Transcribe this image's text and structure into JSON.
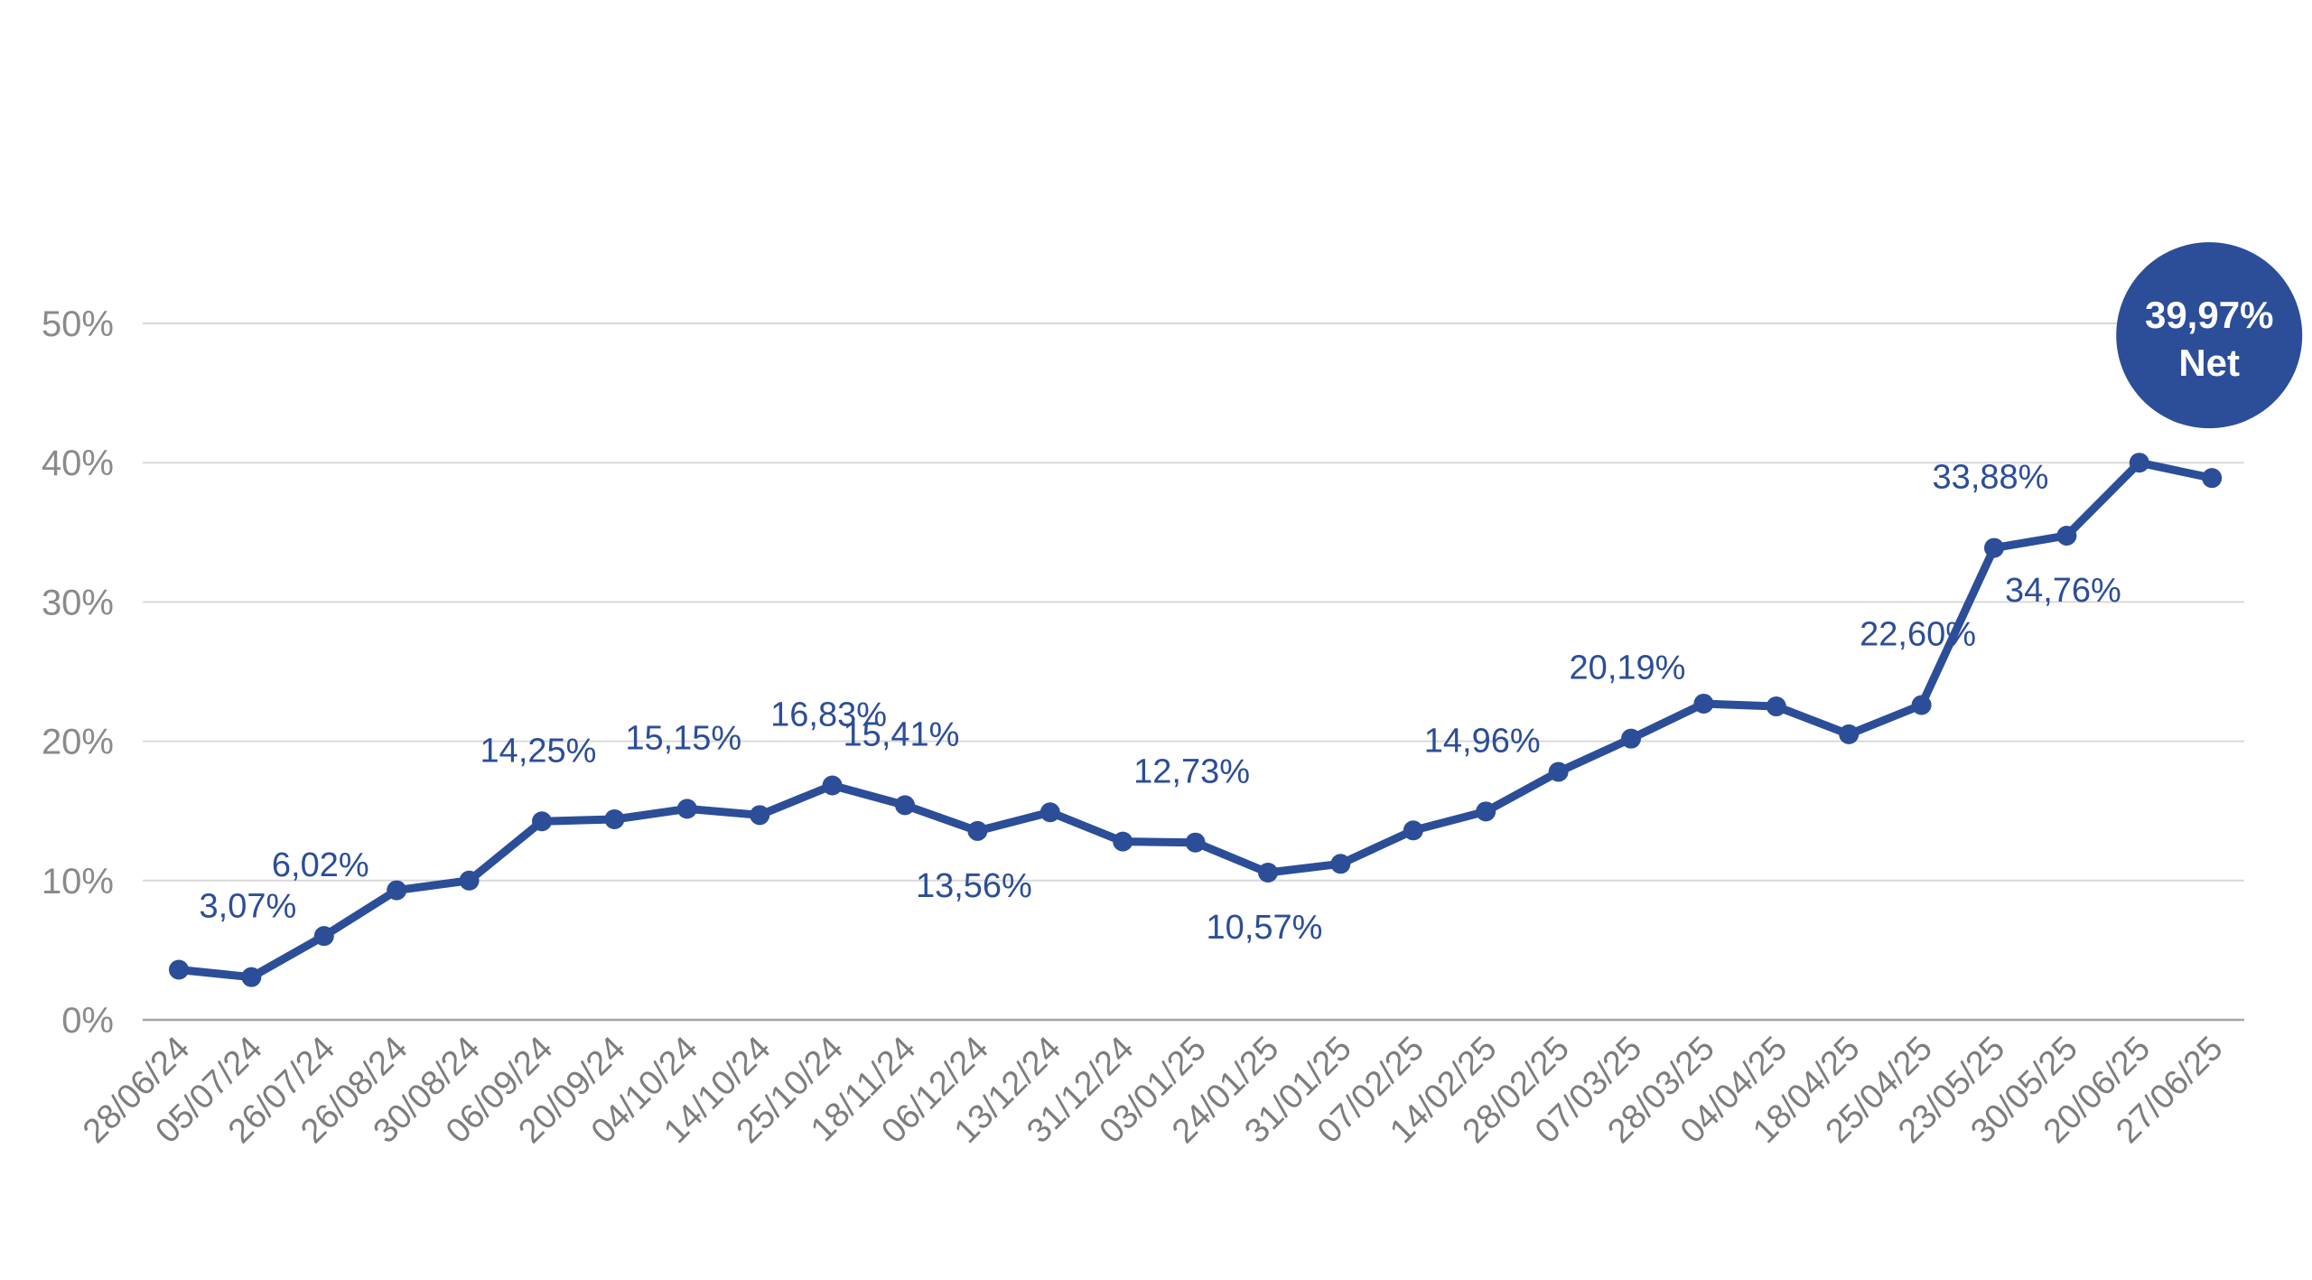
{
  "chart_data": {
    "type": "line",
    "categories": [
      "28/06/24",
      "05/07/24",
      "26/07/24",
      "26/08/24",
      "30/08/24",
      "06/09/24",
      "20/09/24",
      "04/10/24",
      "14/10/24",
      "25/10/24",
      "18/11/24",
      "06/12/24",
      "13/12/24",
      "31/12/24",
      "03/01/25",
      "24/01/25",
      "31/01/25",
      "07/02/25",
      "14/02/25",
      "28/02/25",
      "07/03/25",
      "28/03/25",
      "04/04/25",
      "18/04/25",
      "25/04/25",
      "23/05/25",
      "30/05/25",
      "20/06/25",
      "27/06/25"
    ],
    "series": [
      {
        "values": [
          3.6,
          3.07,
          6.02,
          9.3,
          10.0,
          14.25,
          14.4,
          15.15,
          14.7,
          16.83,
          15.41,
          13.56,
          14.9,
          12.8,
          12.73,
          10.57,
          11.2,
          13.6,
          14.96,
          17.8,
          20.19,
          22.7,
          22.5,
          20.5,
          22.6,
          33.88,
          34.76,
          40.0,
          38.9
        ],
        "color": "#2c4e98"
      }
    ],
    "ylim": [
      0,
      50
    ],
    "yticks": [
      "0%",
      "10%",
      "20%",
      "30%",
      "40%",
      "50%"
    ],
    "ytick_values": [
      0,
      10,
      20,
      30,
      40,
      50
    ],
    "grid": true,
    "xlabel": "",
    "ylabel": "",
    "title": "",
    "data_labels": [
      {
        "index": 1,
        "text": "3,07%",
        "position": "above"
      },
      {
        "index": 2,
        "text": "6,02%",
        "position": "above"
      },
      {
        "index": 5,
        "text": "14,25%",
        "position": "above"
      },
      {
        "index": 7,
        "text": "15,15%",
        "position": "above"
      },
      {
        "index": 9,
        "text": "16,83%",
        "position": "above"
      },
      {
        "index": 10,
        "text": "15,41%",
        "position": "above"
      },
      {
        "index": 11,
        "text": "13,56%",
        "position": "below"
      },
      {
        "index": 14,
        "text": "12,73%",
        "position": "above"
      },
      {
        "index": 15,
        "text": "10,57%",
        "position": "below"
      },
      {
        "index": 18,
        "text": "14,96%",
        "position": "above"
      },
      {
        "index": 20,
        "text": "20,19%",
        "position": "above"
      },
      {
        "index": 24,
        "text": "22,60%",
        "position": "above"
      },
      {
        "index": 25,
        "text": "33,88%",
        "position": "above"
      },
      {
        "index": 26,
        "text": "34,76%",
        "position": "below"
      }
    ],
    "badge": {
      "value": "39,97%",
      "label": "Net",
      "color": "#2c4e98"
    },
    "colors": {
      "grid": "#d9d9d9",
      "axis": "#a6a6a6"
    }
  }
}
